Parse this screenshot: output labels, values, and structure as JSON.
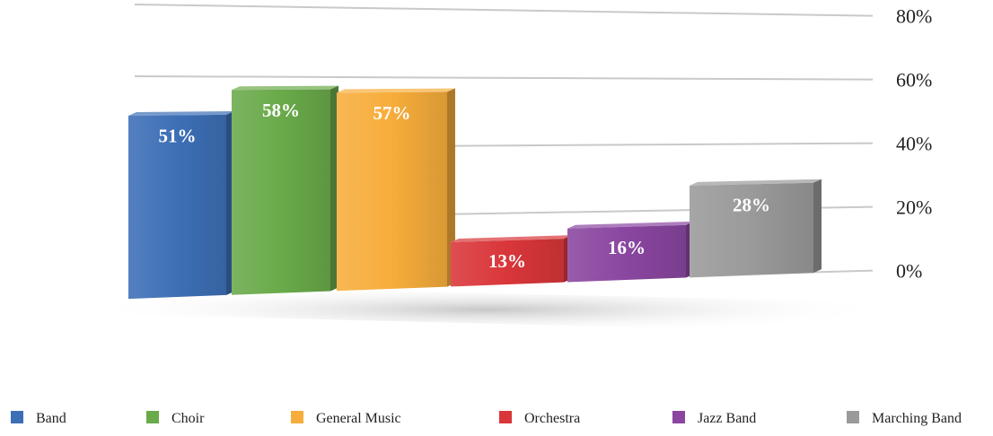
{
  "chart_data": {
    "type": "bar",
    "title": "",
    "xlabel": "",
    "ylabel": "",
    "ylim": [
      0,
      80
    ],
    "yticks": [
      "0%",
      "20%",
      "40%",
      "60%",
      "80%"
    ],
    "ytick_values": [
      0,
      20,
      40,
      60,
      80
    ],
    "grid": true,
    "three_d": true,
    "legend_position": "bottom",
    "categories": [
      "Band",
      "Choir",
      "General Music",
      "Orchestra",
      "Jazz Band",
      "Marching Band"
    ],
    "values": [
      51,
      58,
      57,
      13,
      16,
      28
    ],
    "data_labels": [
      "51%",
      "58%",
      "57%",
      "13%",
      "16%",
      "28%"
    ],
    "colors": [
      "#3d6fb6",
      "#6aaa4a",
      "#f7ad3b",
      "#d9363a",
      "#8a46a0",
      "#9a9a9a"
    ]
  }
}
